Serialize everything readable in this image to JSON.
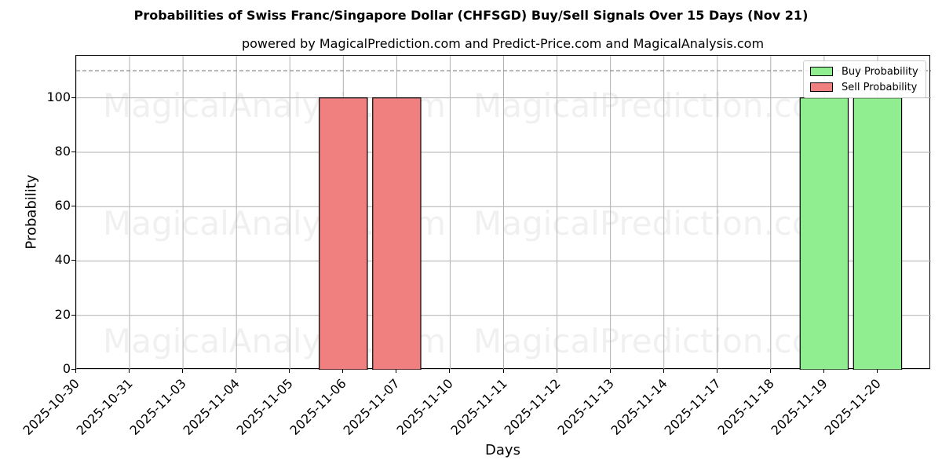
{
  "title": "Probabilities of Swiss Franc/Singapore Dollar (CHFSGD) Buy/Sell Signals Over 15 Days (Nov 21)",
  "subtitle": "powered by MagicalPrediction.com and Predict-Price.com and MagicalAnalysis.com",
  "watermarks": [
    "MagicalAnalysis.com",
    "MagicalPrediction.com"
  ],
  "colors": {
    "buy": "#90ee90",
    "sell": "#f08080",
    "grid": "#b0b0b0",
    "threshold_line": "#808080"
  },
  "legend": {
    "buy_label": "Buy Probability",
    "sell_label": "Sell Probability"
  },
  "axes": {
    "xlabel": "Days",
    "ylabel": "Probability"
  },
  "chart_data": {
    "type": "bar",
    "title": "Probabilities of Swiss Franc/Singapore Dollar (CHFSGD) Buy/Sell Signals Over 15 Days (Nov 21)",
    "subtitle": "powered by MagicalPrediction.com and Predict-Price.com and MagicalAnalysis.com",
    "xlabel": "Days",
    "ylabel": "Probability",
    "categories": [
      "2025-10-30",
      "2025-10-31",
      "2025-11-03",
      "2025-11-04",
      "2025-11-05",
      "2025-11-06",
      "2025-11-07",
      "2025-11-10",
      "2025-11-11",
      "2025-11-12",
      "2025-11-13",
      "2025-11-14",
      "2025-11-17",
      "2025-11-18",
      "2025-11-19",
      "2025-11-20"
    ],
    "series": [
      {
        "name": "Buy Probability",
        "color": "#90ee90",
        "values": [
          0,
          0,
          0,
          0,
          0,
          0,
          0,
          0,
          0,
          0,
          0,
          0,
          0,
          0,
          100,
          100
        ]
      },
      {
        "name": "Sell Probability",
        "color": "#f08080",
        "values": [
          0,
          0,
          0,
          0,
          0,
          100,
          100,
          0,
          0,
          0,
          0,
          0,
          0,
          0,
          0,
          0
        ]
      }
    ],
    "yticks": [
      0,
      20,
      40,
      60,
      80,
      100
    ],
    "ylim": [
      0,
      115.5
    ],
    "threshold_line": 110,
    "grid": true,
    "legend_position": "upper right"
  }
}
